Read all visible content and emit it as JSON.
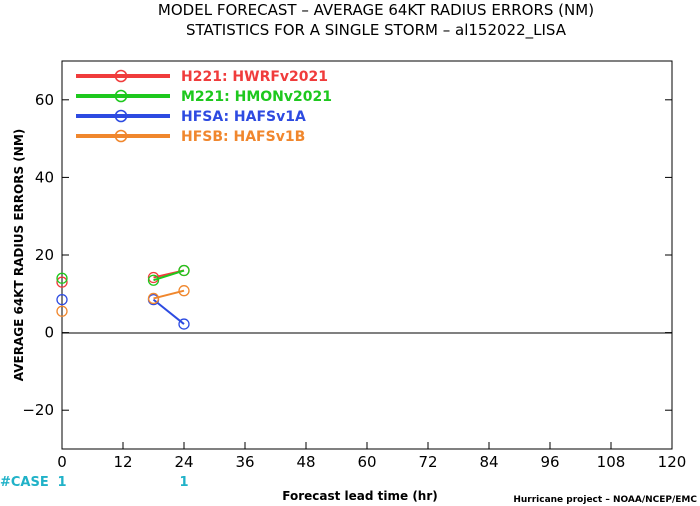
{
  "chart_data": {
    "type": "line",
    "title": "MODEL FORECAST – AVERAGE 64KT RADIUS ERRORS (NM)",
    "subtitle": "STATISTICS FOR A SINGLE STORM – al152022_LISA",
    "xlabel": "Forecast lead time (hr)",
    "ylabel": "AVERAGE 64KT RADIUS ERRORS (NM)",
    "xlim": [
      0,
      120
    ],
    "ylim": [
      -30,
      70
    ],
    "x_ticks": [
      "0",
      "12",
      "24",
      "36",
      "48",
      "60",
      "72",
      "84",
      "96",
      "108",
      "120"
    ],
    "y_ticks": [
      "−20",
      "0",
      "20",
      "40",
      "60"
    ],
    "grid": false,
    "legend_position": "top-left",
    "zero_line": true,
    "case_label": "#CASE",
    "cases": [
      {
        "x": 0,
        "label": "1"
      },
      {
        "x": 24,
        "label": "1"
      }
    ],
    "credit": "Hurricane project – NOAA/NCEP/EMC",
    "series": [
      {
        "name": "H221:  HWRFv2021",
        "color": "#f03c3c",
        "points": [
          {
            "x": 0,
            "y": 13
          },
          {
            "x": 18,
            "y": 14.2
          },
          {
            "x": 24,
            "y": 16
          }
        ]
      },
      {
        "name": "M221:  HMONv2021",
        "color": "#1ec81e",
        "points": [
          {
            "x": 0,
            "y": 14
          },
          {
            "x": 18,
            "y": 13.5
          },
          {
            "x": 24,
            "y": 16
          }
        ]
      },
      {
        "name": "HFSA:  HAFSv1A",
        "color": "#2d4be1",
        "points": [
          {
            "x": 0,
            "y": 8.5
          },
          {
            "x": 18,
            "y": 8.5
          },
          {
            "x": 24,
            "y": 2.2
          }
        ]
      },
      {
        "name": "HFSB:  HAFSv1B",
        "color": "#f0872d",
        "points": [
          {
            "x": 0,
            "y": 5.5
          },
          {
            "x": 18,
            "y": 8.8
          },
          {
            "x": 24,
            "y": 10.8
          }
        ]
      }
    ]
  }
}
